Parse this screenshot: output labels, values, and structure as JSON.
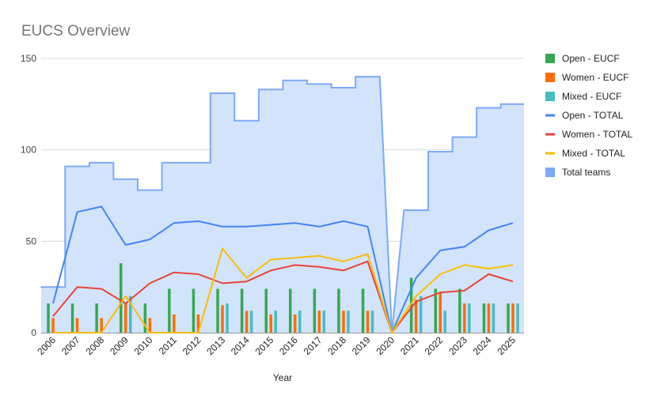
{
  "chart_data": {
    "type": "bar",
    "title": "EUCS Overview",
    "xlabel": "Year",
    "ylabel": "",
    "ylim": [
      0,
      150
    ],
    "yticks": [
      0,
      50,
      100,
      150
    ],
    "grid": true,
    "legend_position": "right",
    "categories": [
      "2006",
      "2007",
      "2008",
      "2009",
      "2010",
      "2011",
      "2012",
      "2013",
      "2014",
      "2015",
      "2016",
      "2017",
      "2018",
      "2019",
      "2020",
      "2021",
      "2022",
      "2023",
      "2024",
      "2025"
    ],
    "area_series": {
      "name": "Total teams",
      "type": "stepped-area",
      "color": "#7baaf7",
      "fill": "#d2e3fc",
      "values": [
        25,
        91,
        93,
        84,
        78,
        93,
        93,
        131,
        116,
        133,
        138,
        136,
        134,
        140,
        0,
        67,
        99,
        107,
        123,
        125
      ]
    },
    "bar_series": [
      {
        "name": "Open - EUCF",
        "color": "#34a853",
        "values": [
          16,
          16,
          16,
          38,
          16,
          24,
          24,
          24,
          24,
          24,
          24,
          24,
          24,
          24,
          0,
          30,
          24,
          24,
          16,
          16
        ]
      },
      {
        "name": "Women - EUCF",
        "color": "#ff6d01",
        "values": [
          8,
          8,
          8,
          16,
          8,
          10,
          10,
          15,
          12,
          10,
          10,
          12,
          12,
          12,
          0,
          18,
          22,
          16,
          16,
          16
        ]
      },
      {
        "name": "Mixed - EUCF",
        "color": "#46bdc6",
        "values": [
          0,
          0,
          0,
          20,
          0,
          0,
          0,
          16,
          12,
          12,
          12,
          12,
          12,
          12,
          0,
          20,
          12,
          16,
          16,
          16
        ]
      }
    ],
    "line_series": [
      {
        "name": "Open - TOTAL",
        "color": "#4285f4",
        "values": [
          16,
          66,
          69,
          48,
          51,
          60,
          61,
          58,
          58,
          59,
          60,
          58,
          61,
          58,
          0,
          30,
          45,
          47,
          56,
          60
        ]
      },
      {
        "name": "Women - TOTAL",
        "color": "#ea4335",
        "values": [
          9,
          25,
          24,
          16,
          27,
          33,
          32,
          27,
          28,
          34,
          37,
          36,
          34,
          39,
          0,
          17,
          22,
          23,
          32,
          28
        ]
      },
      {
        "name": "Mixed - TOTAL",
        "color": "#fbbc04",
        "values": [
          0,
          0,
          0,
          20,
          0,
          0,
          0,
          46,
          30,
          40,
          41,
          42,
          39,
          43,
          0,
          20,
          32,
          37,
          35,
          37
        ]
      }
    ],
    "legend_order": [
      "Open - EUCF",
      "Women - EUCF",
      "Mixed - EUCF",
      "Open - TOTAL",
      "Women - TOTAL",
      "Mixed - TOTAL",
      "Total teams"
    ]
  }
}
